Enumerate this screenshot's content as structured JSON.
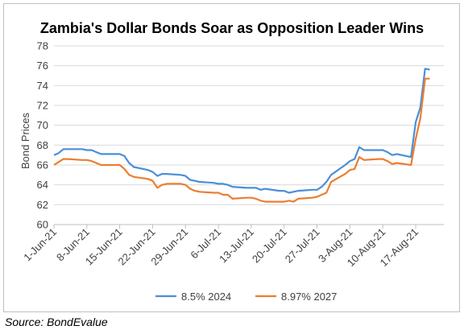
{
  "source": "Source: BondEvalue",
  "chart_data": {
    "type": "line",
    "title": "Zambia's Dollar Bonds Soar as Opposition Leader Wins",
    "xlabel": "",
    "ylabel": "Bond Prices",
    "ylim": [
      60,
      78
    ],
    "yticks": [
      60,
      62,
      64,
      66,
      68,
      70,
      72,
      74,
      76,
      78
    ],
    "xlim": [
      "2021-06-01",
      "2021-08-23"
    ],
    "xticks": [
      "1-Jun-21",
      "8-Jun-21",
      "15-Jun-21",
      "22-Jun-21",
      "29-Jun-21",
      "6-Jul-21",
      "13-Jul-21",
      "20-Jul-21",
      "27-Jul-21",
      "3-Aug-21",
      "10-Aug-21",
      "17-Aug-21"
    ],
    "grid": true,
    "legend_position": "bottom",
    "series": [
      {
        "name": "8.5% 2024",
        "color": "#4a8fd8",
        "points": [
          [
            "2021-06-01",
            67.0
          ],
          [
            "2021-06-02",
            67.2
          ],
          [
            "2021-06-03",
            67.6
          ],
          [
            "2021-06-04",
            67.6
          ],
          [
            "2021-06-07",
            67.6
          ],
          [
            "2021-06-08",
            67.5
          ],
          [
            "2021-06-09",
            67.5
          ],
          [
            "2021-06-10",
            67.3
          ],
          [
            "2021-06-11",
            67.1
          ],
          [
            "2021-06-14",
            67.1
          ],
          [
            "2021-06-15",
            67.1
          ],
          [
            "2021-06-16",
            66.9
          ],
          [
            "2021-06-17",
            66.2
          ],
          [
            "2021-06-18",
            65.8
          ],
          [
            "2021-06-21",
            65.5
          ],
          [
            "2021-06-22",
            65.3
          ],
          [
            "2021-06-23",
            64.9
          ],
          [
            "2021-06-24",
            65.1
          ],
          [
            "2021-06-25",
            65.1
          ],
          [
            "2021-06-28",
            65.0
          ],
          [
            "2021-06-29",
            64.9
          ],
          [
            "2021-06-30",
            64.5
          ],
          [
            "2021-07-01",
            64.4
          ],
          [
            "2021-07-02",
            64.3
          ],
          [
            "2021-07-05",
            64.2
          ],
          [
            "2021-07-06",
            64.1
          ],
          [
            "2021-07-07",
            64.1
          ],
          [
            "2021-07-08",
            64.0
          ],
          [
            "2021-07-09",
            63.8
          ],
          [
            "2021-07-12",
            63.7
          ],
          [
            "2021-07-13",
            63.7
          ],
          [
            "2021-07-14",
            63.7
          ],
          [
            "2021-07-15",
            63.5
          ],
          [
            "2021-07-16",
            63.6
          ],
          [
            "2021-07-19",
            63.4
          ],
          [
            "2021-07-20",
            63.4
          ],
          [
            "2021-07-21",
            63.2
          ],
          [
            "2021-07-22",
            63.3
          ],
          [
            "2021-07-23",
            63.4
          ],
          [
            "2021-07-26",
            63.5
          ],
          [
            "2021-07-27",
            63.5
          ],
          [
            "2021-07-28",
            63.8
          ],
          [
            "2021-07-29",
            64.3
          ],
          [
            "2021-07-30",
            65.0
          ],
          [
            "2021-08-02",
            66.0
          ],
          [
            "2021-08-03",
            66.4
          ],
          [
            "2021-08-04",
            66.6
          ],
          [
            "2021-08-05",
            67.8
          ],
          [
            "2021-08-06",
            67.5
          ],
          [
            "2021-08-09",
            67.5
          ],
          [
            "2021-08-10",
            67.5
          ],
          [
            "2021-08-11",
            67.3
          ],
          [
            "2021-08-12",
            67.0
          ],
          [
            "2021-08-13",
            67.1
          ],
          [
            "2021-08-16",
            66.8
          ],
          [
            "2021-08-17",
            70.3
          ],
          [
            "2021-08-18",
            71.8
          ],
          [
            "2021-08-19",
            75.7
          ],
          [
            "2021-08-20",
            75.6
          ]
        ]
      },
      {
        "name": "8.97% 2027",
        "color": "#ed7d31",
        "points": [
          [
            "2021-06-01",
            66.0
          ],
          [
            "2021-06-02",
            66.3
          ],
          [
            "2021-06-03",
            66.6
          ],
          [
            "2021-06-04",
            66.6
          ],
          [
            "2021-06-07",
            66.5
          ],
          [
            "2021-06-08",
            66.5
          ],
          [
            "2021-06-09",
            66.4
          ],
          [
            "2021-06-10",
            66.2
          ],
          [
            "2021-06-11",
            66.0
          ],
          [
            "2021-06-14",
            66.0
          ],
          [
            "2021-06-15",
            66.0
          ],
          [
            "2021-06-16",
            65.6
          ],
          [
            "2021-06-17",
            65.0
          ],
          [
            "2021-06-18",
            64.8
          ],
          [
            "2021-06-21",
            64.6
          ],
          [
            "2021-06-22",
            64.4
          ],
          [
            "2021-06-23",
            63.7
          ],
          [
            "2021-06-24",
            64.0
          ],
          [
            "2021-06-25",
            64.1
          ],
          [
            "2021-06-28",
            64.1
          ],
          [
            "2021-06-29",
            64.0
          ],
          [
            "2021-06-30",
            63.6
          ],
          [
            "2021-07-01",
            63.4
          ],
          [
            "2021-07-02",
            63.3
          ],
          [
            "2021-07-05",
            63.2
          ],
          [
            "2021-07-06",
            63.2
          ],
          [
            "2021-07-07",
            63.0
          ],
          [
            "2021-07-08",
            63.0
          ],
          [
            "2021-07-09",
            62.6
          ],
          [
            "2021-07-12",
            62.7
          ],
          [
            "2021-07-13",
            62.7
          ],
          [
            "2021-07-14",
            62.6
          ],
          [
            "2021-07-15",
            62.4
          ],
          [
            "2021-07-16",
            62.3
          ],
          [
            "2021-07-19",
            62.3
          ],
          [
            "2021-07-20",
            62.3
          ],
          [
            "2021-07-21",
            62.4
          ],
          [
            "2021-07-22",
            62.3
          ],
          [
            "2021-07-23",
            62.6
          ],
          [
            "2021-07-26",
            62.7
          ],
          [
            "2021-07-27",
            62.8
          ],
          [
            "2021-07-28",
            63.0
          ],
          [
            "2021-07-29",
            63.2
          ],
          [
            "2021-07-30",
            64.3
          ],
          [
            "2021-08-02",
            65.1
          ],
          [
            "2021-08-03",
            65.5
          ],
          [
            "2021-08-04",
            65.6
          ],
          [
            "2021-08-05",
            66.8
          ],
          [
            "2021-08-06",
            66.5
          ],
          [
            "2021-08-09",
            66.6
          ],
          [
            "2021-08-10",
            66.6
          ],
          [
            "2021-08-11",
            66.4
          ],
          [
            "2021-08-12",
            66.1
          ],
          [
            "2021-08-13",
            66.2
          ],
          [
            "2021-08-16",
            66.0
          ],
          [
            "2021-08-17",
            68.6
          ],
          [
            "2021-08-18",
            70.7
          ],
          [
            "2021-08-19",
            74.7
          ],
          [
            "2021-08-20",
            74.7
          ]
        ]
      }
    ]
  }
}
